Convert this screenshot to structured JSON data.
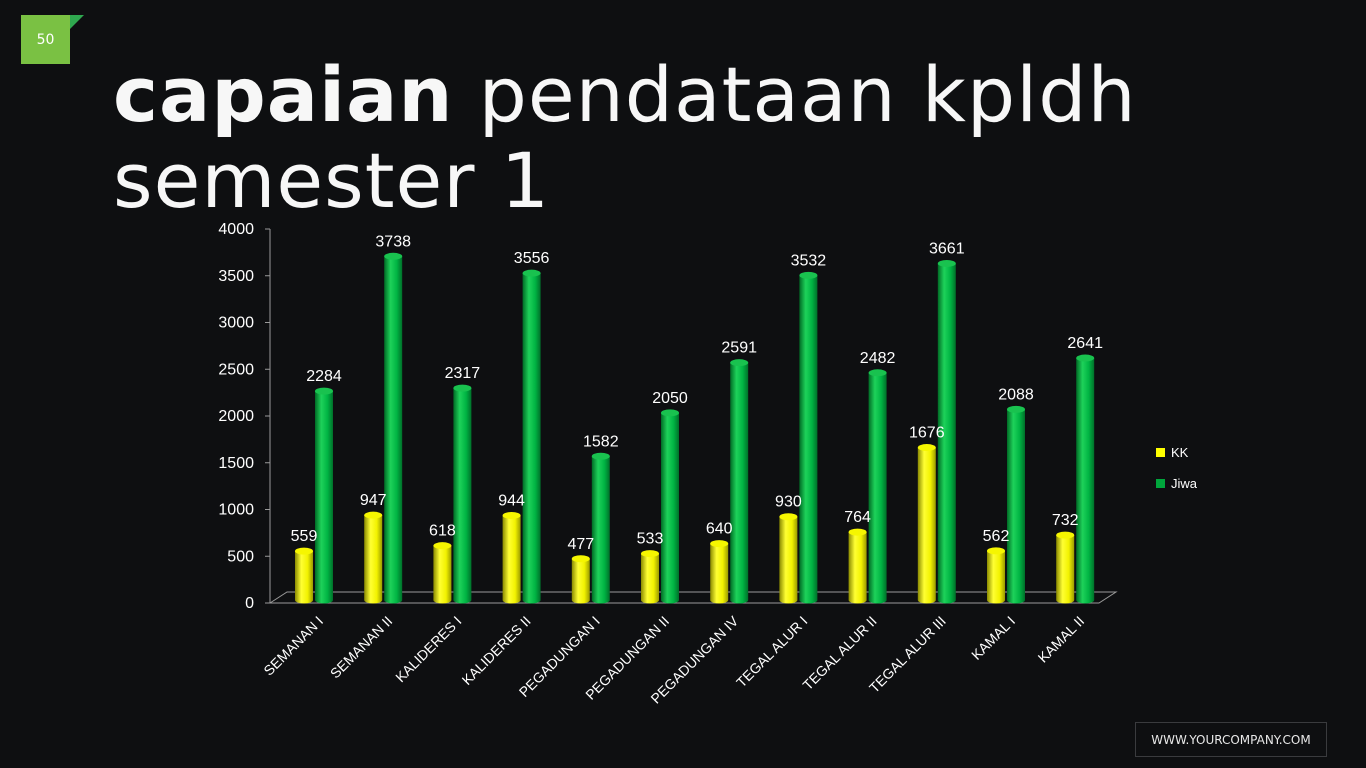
{
  "slide_number": "50",
  "title": {
    "bold": "capaian",
    "line1_rest": " pendataan kpldh",
    "line2": "semester 1"
  },
  "footer": "WWW.YOURCOMPANY.COM",
  "colors": {
    "kk": "#ffff00",
    "jiwa": "#00a63c",
    "accent": "#7ac143"
  },
  "chart_data": {
    "type": "bar",
    "categories": [
      "SEMANAN I",
      "SEMANAN II",
      "KALIDERES I",
      "KALIDERES II",
      "PEGADUNGAN I",
      "PEGADUNGAN II",
      "PEGADUNGAN IV",
      "TEGAL ALUR I",
      "TEGAL ALUR II",
      "TEGAL ALUR III",
      "KAMAL I",
      "KAMAL II"
    ],
    "series": [
      {
        "name": "KK",
        "values": [
          559,
          947,
          618,
          944,
          477,
          533,
          640,
          930,
          764,
          1676,
          562,
          732
        ]
      },
      {
        "name": "Jiwa",
        "values": [
          2284,
          3738,
          2317,
          3556,
          1582,
          2050,
          2591,
          3532,
          2482,
          3661,
          2088,
          2641
        ]
      }
    ],
    "yticks": [
      0,
      500,
      1000,
      1500,
      2000,
      2500,
      3000,
      3500,
      4000
    ],
    "ylim": [
      0,
      4000
    ],
    "grid": false,
    "legend": "right"
  }
}
